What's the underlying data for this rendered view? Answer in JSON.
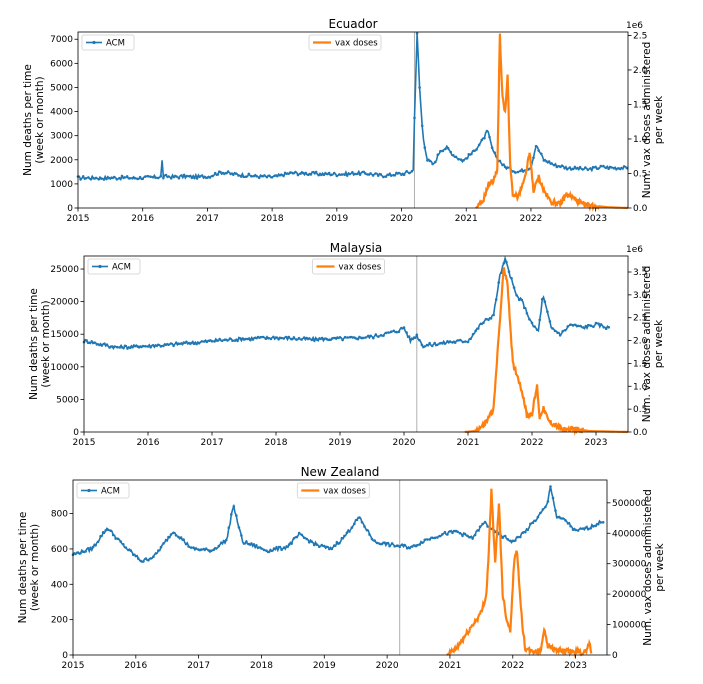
{
  "chart_data": [
    {
      "type": "line",
      "title": "Ecuador",
      "ylabel": [
        "Num deaths per time",
        "(week or month)"
      ],
      "y2label": [
        "Num. vax doses administered",
        "per week"
      ],
      "y2_offset_text": "1e6",
      "xlim": [
        2015,
        2023.5
      ],
      "ylim": [
        0,
        7300
      ],
      "y2lim": [
        0,
        2.55
      ],
      "x_ticks": [
        "2015",
        "2016",
        "2017",
        "2018",
        "2019",
        "2020",
        "2021",
        "2022",
        "2023"
      ],
      "y_ticks": [
        "0",
        "1000",
        "2000",
        "3000",
        "4000",
        "5000",
        "6000",
        "7000"
      ],
      "y2_ticks": [
        "0.0",
        "0.5",
        "1.0",
        "1.5",
        "2.0",
        "2.5"
      ],
      "vline": 2020.2,
      "legend": {
        "acm": "ACM",
        "vax": "vax doses"
      },
      "acm_anchors": [
        [
          2015,
          1250
        ],
        [
          2015.5,
          1250
        ],
        [
          2016,
          1250
        ],
        [
          2016.29,
          1300
        ],
        [
          2016.3,
          1950
        ],
        [
          2016.32,
          1300
        ],
        [
          2017,
          1300
        ],
        [
          2017.2,
          1480
        ],
        [
          2017.6,
          1350
        ],
        [
          2018,
          1280
        ],
        [
          2018.3,
          1450
        ],
        [
          2019,
          1400
        ],
        [
          2019.4,
          1450
        ],
        [
          2019.7,
          1350
        ],
        [
          2020,
          1420
        ],
        [
          2020.15,
          1500
        ],
        [
          2020.19,
          1600
        ],
        [
          2020.2,
          3800
        ],
        [
          2020.24,
          7200
        ],
        [
          2020.28,
          5000
        ],
        [
          2020.33,
          3000
        ],
        [
          2020.4,
          2000
        ],
        [
          2020.5,
          1800
        ],
        [
          2020.6,
          2400
        ],
        [
          2020.7,
          2500
        ],
        [
          2020.8,
          2200
        ],
        [
          2020.95,
          1950
        ],
        [
          2021.1,
          2300
        ],
        [
          2021.25,
          2800
        ],
        [
          2021.33,
          3200
        ],
        [
          2021.42,
          2300
        ],
        [
          2021.5,
          2000
        ],
        [
          2021.6,
          1700
        ],
        [
          2021.8,
          1500
        ],
        [
          2022,
          1700
        ],
        [
          2022.08,
          2600
        ],
        [
          2022.2,
          2000
        ],
        [
          2022.35,
          1800
        ],
        [
          2022.6,
          1650
        ],
        [
          2022.9,
          1600
        ],
        [
          2023.1,
          1700
        ],
        [
          2023.5,
          1650
        ]
      ],
      "vax_anchors": [
        [
          2021.15,
          0
        ],
        [
          2021.25,
          0.08
        ],
        [
          2021.35,
          0.35
        ],
        [
          2021.42,
          0.4
        ],
        [
          2021.48,
          0.55
        ],
        [
          2021.52,
          2.5
        ],
        [
          2021.56,
          1.6
        ],
        [
          2021.6,
          1.4
        ],
        [
          2021.64,
          1.9
        ],
        [
          2021.68,
          0.6
        ],
        [
          2021.72,
          0.2
        ],
        [
          2021.8,
          0.15
        ],
        [
          2021.9,
          0.4
        ],
        [
          2021.98,
          0.8
        ],
        [
          2022.04,
          0.25
        ],
        [
          2022.12,
          0.45
        ],
        [
          2022.2,
          0.25
        ],
        [
          2022.3,
          0.1
        ],
        [
          2022.45,
          0.05
        ],
        [
          2022.55,
          0.2
        ],
        [
          2022.65,
          0.15
        ],
        [
          2022.8,
          0.05
        ],
        [
          2023.0,
          0.03
        ],
        [
          2023.2,
          0.01
        ],
        [
          2023.5,
          0
        ]
      ]
    },
    {
      "type": "line",
      "title": "Malaysia",
      "ylabel": [
        "Num deaths per time",
        "(week or month)"
      ],
      "y2label": [
        "Num. vax doses administered",
        "per week"
      ],
      "y2_offset_text": "1e6",
      "xlim": [
        2015,
        2023.5
      ],
      "ylim": [
        0,
        27000
      ],
      "y2lim": [
        0,
        3.85
      ],
      "x_ticks": [
        "2015",
        "2016",
        "2017",
        "2018",
        "2019",
        "2020",
        "2021",
        "2022",
        "2023"
      ],
      "y_ticks": [
        "0",
        "5000",
        "10000",
        "15000",
        "20000",
        "25000"
      ],
      "y2_ticks": [
        "0.0",
        "0.5",
        "1.0",
        "1.5",
        "2.0",
        "2.5",
        "3.0",
        "3.5"
      ],
      "vline": 2020.2,
      "legend": {
        "acm": "ACM",
        "vax": "vax doses"
      },
      "acm_anchors": [
        [
          2015,
          14000
        ],
        [
          2015.5,
          13000
        ],
        [
          2016,
          13200
        ],
        [
          2016.5,
          13500
        ],
        [
          2017,
          14000
        ],
        [
          2017.5,
          14300
        ],
        [
          2018,
          14500
        ],
        [
          2018.5,
          14200
        ],
        [
          2019,
          14300
        ],
        [
          2019.5,
          14600
        ],
        [
          2019.9,
          15500
        ],
        [
          2020,
          16000
        ],
        [
          2020.1,
          14000
        ],
        [
          2020.2,
          14800
        ],
        [
          2020.3,
          13200
        ],
        [
          2020.7,
          13800
        ],
        [
          2021,
          14000
        ],
        [
          2021.2,
          16500
        ],
        [
          2021.4,
          18000
        ],
        [
          2021.5,
          24000
        ],
        [
          2021.58,
          26500
        ],
        [
          2021.66,
          24000
        ],
        [
          2021.75,
          21000
        ],
        [
          2021.85,
          20000
        ],
        [
          2022,
          16500
        ],
        [
          2022.1,
          15500
        ],
        [
          2022.17,
          21000
        ],
        [
          2022.3,
          16000
        ],
        [
          2022.45,
          15000
        ],
        [
          2022.6,
          16500
        ],
        [
          2022.8,
          16000
        ],
        [
          2023,
          16500
        ],
        [
          2023.2,
          16000
        ]
      ],
      "vax_anchors": [
        [
          2020.95,
          0
        ],
        [
          2021.1,
          0.02
        ],
        [
          2021.25,
          0.15
        ],
        [
          2021.4,
          0.5
        ],
        [
          2021.5,
          2.5
        ],
        [
          2021.56,
          3.6
        ],
        [
          2021.62,
          3.2
        ],
        [
          2021.7,
          1.5
        ],
        [
          2021.78,
          1.2
        ],
        [
          2021.86,
          0.8
        ],
        [
          2021.92,
          0.35
        ],
        [
          2022,
          0.4
        ],
        [
          2022.08,
          1.0
        ],
        [
          2022.12,
          0.3
        ],
        [
          2022.18,
          0.55
        ],
        [
          2022.25,
          0.25
        ],
        [
          2022.35,
          0.15
        ],
        [
          2022.5,
          0.05
        ],
        [
          2022.7,
          0.06
        ],
        [
          2022.9,
          0.02
        ],
        [
          2023.2,
          0.01
        ],
        [
          2023.5,
          0
        ]
      ]
    },
    {
      "type": "line",
      "title": "New Zealand",
      "ylabel": [
        "Num deaths per time",
        "(week or month)"
      ],
      "y2label": [
        "Num. vax doses administered",
        "per week"
      ],
      "y2_offset_text": "",
      "xlim": [
        2015,
        2023.5
      ],
      "ylim": [
        0,
        990
      ],
      "y2lim": [
        0,
        575000
      ],
      "x_ticks": [
        "2015",
        "2016",
        "2017",
        "2018",
        "2019",
        "2020",
        "2021",
        "2022",
        "2023"
      ],
      "y_ticks": [
        "0",
        "200",
        "400",
        "600",
        "800"
      ],
      "y2_ticks": [
        "0",
        "100000",
        "200000",
        "300000",
        "400000",
        "500000"
      ],
      "vline": 2020.2,
      "legend": {
        "acm": "ACM",
        "vax": "vax doses"
      },
      "acm_anchors": [
        [
          2015,
          570
        ],
        [
          2015.3,
          600
        ],
        [
          2015.55,
          720
        ],
        [
          2015.8,
          620
        ],
        [
          2016.1,
          530
        ],
        [
          2016.3,
          560
        ],
        [
          2016.6,
          700
        ],
        [
          2016.9,
          600
        ],
        [
          2017.2,
          590
        ],
        [
          2017.45,
          650
        ],
        [
          2017.55,
          850
        ],
        [
          2017.7,
          640
        ],
        [
          2018.1,
          590
        ],
        [
          2018.4,
          610
        ],
        [
          2018.6,
          680
        ],
        [
          2018.9,
          620
        ],
        [
          2019.1,
          600
        ],
        [
          2019.3,
          660
        ],
        [
          2019.55,
          780
        ],
        [
          2019.8,
          640
        ],
        [
          2020.1,
          620
        ],
        [
          2020.4,
          610
        ],
        [
          2020.6,
          650
        ],
        [
          2020.85,
          680
        ],
        [
          2021.1,
          700
        ],
        [
          2021.35,
          660
        ],
        [
          2021.55,
          750
        ],
        [
          2021.7,
          700
        ],
        [
          2021.9,
          660
        ],
        [
          2022,
          640
        ],
        [
          2022.2,
          700
        ],
        [
          2022.4,
          780
        ],
        [
          2022.55,
          850
        ],
        [
          2022.6,
          960
        ],
        [
          2022.7,
          780
        ],
        [
          2022.85,
          760
        ],
        [
          2023,
          700
        ],
        [
          2023.2,
          720
        ],
        [
          2023.45,
          760
        ]
      ],
      "vax_anchors": [
        [
          2020.95,
          0
        ],
        [
          2021.1,
          20000
        ],
        [
          2021.3,
          80000
        ],
        [
          2021.5,
          140000
        ],
        [
          2021.58,
          200000
        ],
        [
          2021.62,
          350000
        ],
        [
          2021.66,
          540000
        ],
        [
          2021.72,
          300000
        ],
        [
          2021.78,
          500000
        ],
        [
          2021.84,
          200000
        ],
        [
          2021.9,
          120000
        ],
        [
          2021.96,
          80000
        ],
        [
          2022.02,
          300000
        ],
        [
          2022.06,
          350000
        ],
        [
          2022.1,
          250000
        ],
        [
          2022.15,
          100000
        ],
        [
          2022.2,
          20000
        ],
        [
          2022.3,
          10000
        ],
        [
          2022.45,
          15000
        ],
        [
          2022.5,
          90000
        ],
        [
          2022.56,
          30000
        ],
        [
          2022.7,
          15000
        ],
        [
          2022.85,
          12000
        ],
        [
          2023.0,
          10000
        ],
        [
          2023.15,
          8000
        ],
        [
          2023.22,
          40000
        ],
        [
          2023.25,
          5000
        ]
      ]
    }
  ]
}
